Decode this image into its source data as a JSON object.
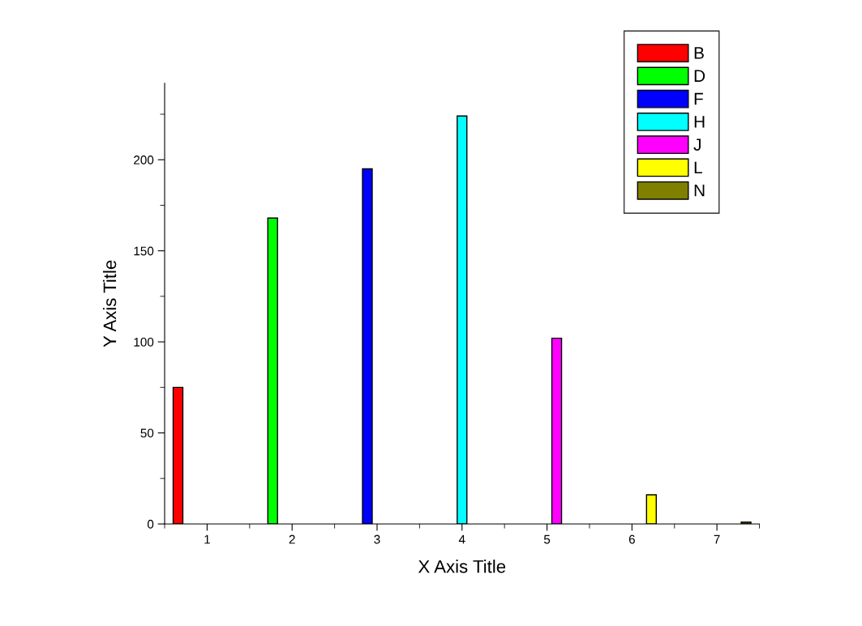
{
  "chart_data": {
    "type": "bar",
    "xlabel": "X Axis Title",
    "ylabel": "Y Axis Title",
    "x": [
      1,
      2,
      3,
      4,
      5,
      6,
      7
    ],
    "series": [
      {
        "name": "B",
        "color": "#ff0000",
        "values": [
          75,
          null,
          null,
          null,
          null,
          null,
          null
        ]
      },
      {
        "name": "D",
        "color": "#00ff00",
        "values": [
          null,
          168,
          null,
          null,
          null,
          null,
          null
        ]
      },
      {
        "name": "F",
        "color": "#0000ff",
        "values": [
          null,
          null,
          195,
          null,
          null,
          null,
          null
        ]
      },
      {
        "name": "H",
        "color": "#00ffff",
        "values": [
          null,
          null,
          null,
          224,
          null,
          null,
          null
        ]
      },
      {
        "name": "J",
        "color": "#ff00ff",
        "values": [
          null,
          null,
          null,
          null,
          102,
          null,
          null
        ]
      },
      {
        "name": "L",
        "color": "#ffff00",
        "values": [
          null,
          null,
          null,
          null,
          null,
          16,
          null
        ]
      },
      {
        "name": "N",
        "color": "#808000",
        "values": [
          null,
          null,
          null,
          null,
          null,
          null,
          1
        ]
      }
    ],
    "xlim": [
      0.5,
      7.5
    ],
    "xticks": [
      1,
      2,
      3,
      4,
      5,
      6,
      7
    ],
    "ylim": [
      0,
      242
    ],
    "yticks": [
      0,
      50,
      100,
      150,
      200
    ],
    "grid": false,
    "legend": "top right"
  }
}
